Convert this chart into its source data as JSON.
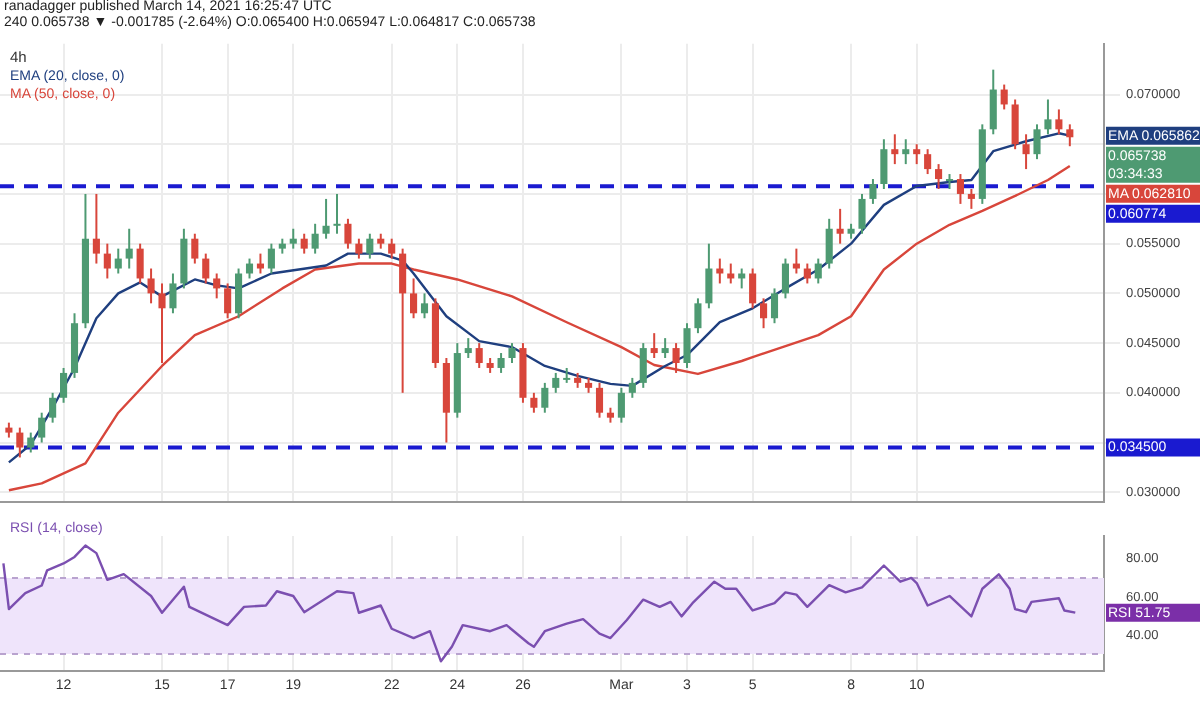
{
  "chart_data": [
    {
      "type": "candlestick",
      "title": "4h",
      "subtitle": "ranadagger published March 14, 2021 16:25:47 UTC",
      "annotations": [
        "240 0.065738 ▼ -0.001785 (-2.64%) O:0.065400 H:0.065947 L:0.064817 C:0.065738",
        "EMA 0.065862",
        "0.065738 03:34:33",
        "MA 0.062810"
      ],
      "tick_labels": "y",
      "grid": true,
      "legend": "top left",
      "xlim": [
        "2021-02-10T01:30",
        "2021-03-15T17:00"
      ],
      "xticks": [
        {
          "value": "2021-02-12",
          "label": null
        },
        {
          "value": "2021-02-15",
          "label": null
        },
        {
          "value": "2021-02-17",
          "label": null
        },
        {
          "value": "2021-02-19",
          "label": null
        },
        {
          "value": "2021-02-22",
          "label": null
        },
        {
          "value": "2021-02-24",
          "label": null
        },
        {
          "value": "2021-02-26",
          "label": null
        },
        {
          "value": "2021-03-01",
          "label": null
        },
        {
          "value": "2021-03-03",
          "label": null
        },
        {
          "value": "2021-03-05",
          "label": null
        },
        {
          "value": "2021-03-08",
          "label": null
        },
        {
          "value": "2021-03-10",
          "label": null
        }
      ],
      "ylim": [
        0.029,
        0.0751
      ],
      "yticks": [
        {
          "value": 0.03,
          "label": "0.030000"
        },
        {
          "value": 0.035,
          "label": null
        },
        {
          "value": 0.04,
          "label": "0.040000"
        },
        {
          "value": 0.045,
          "label": "0.045000"
        },
        {
          "value": 0.05,
          "label": "0.050000"
        },
        {
          "value": 0.055,
          "label": "0.055000"
        },
        {
          "value": 0.06,
          "label": null
        },
        {
          "value": 0.065,
          "label": null
        },
        {
          "value": 0.07,
          "label": "0.070000"
        }
      ],
      "ref_lines": [
        {
          "axis": "y",
          "value": 0.060774,
          "label": "0.060774",
          "color": "#1a1ad0",
          "line_style": "dashed"
        },
        {
          "axis": "y",
          "value": 0.0345,
          "label": "0.034500",
          "color": "#1a1ad0",
          "line_style": "dashed"
        }
      ],
      "x": [
        "2021-02-10T08:00",
        "2021-02-10T16:00",
        "2021-02-11T00:00",
        "2021-02-11T08:00",
        "2021-02-11T16:00",
        "2021-02-12T00:00",
        "2021-02-12T08:00",
        "2021-02-12T16:00",
        "2021-02-13T00:00",
        "2021-02-13T08:00",
        "2021-02-13T16:00",
        "2021-02-14T00:00",
        "2021-02-14T08:00",
        "2021-02-14T16:00",
        "2021-02-15T00:00",
        "2021-02-15T08:00",
        "2021-02-15T16:00",
        "2021-02-16T00:00",
        "2021-02-16T08:00",
        "2021-02-16T16:00",
        "2021-02-17T00:00",
        "2021-02-17T08:00",
        "2021-02-17T16:00",
        "2021-02-18T00:00",
        "2021-02-18T08:00",
        "2021-02-18T16:00",
        "2021-02-19T00:00",
        "2021-02-19T08:00",
        "2021-02-19T16:00",
        "2021-02-20T00:00",
        "2021-02-20T08:00",
        "2021-02-20T16:00",
        "2021-02-21T00:00",
        "2021-02-21T08:00",
        "2021-02-21T16:00",
        "2021-02-22T00:00",
        "2021-02-22T08:00",
        "2021-02-22T16:00",
        "2021-02-23T00:00",
        "2021-02-23T08:00",
        "2021-02-23T16:00",
        "2021-02-24T00:00",
        "2021-02-24T08:00",
        "2021-02-24T16:00",
        "2021-02-25T00:00",
        "2021-02-25T08:00",
        "2021-02-25T16:00",
        "2021-02-26T00:00",
        "2021-02-26T08:00",
        "2021-02-26T16:00",
        "2021-02-27T00:00",
        "2021-02-27T08:00",
        "2021-02-27T16:00",
        "2021-02-28T00:00",
        "2021-02-28T08:00",
        "2021-02-28T16:00",
        "2021-03-01T00:00",
        "2021-03-01T08:00",
        "2021-03-01T16:00",
        "2021-03-02T00:00",
        "2021-03-02T08:00",
        "2021-03-02T16:00",
        "2021-03-03T00:00",
        "2021-03-03T08:00",
        "2021-03-03T16:00",
        "2021-03-04T00:00",
        "2021-03-04T08:00",
        "2021-03-04T16:00",
        "2021-03-05T00:00",
        "2021-03-05T08:00",
        "2021-03-05T16:00",
        "2021-03-06T00:00",
        "2021-03-06T08:00",
        "2021-03-06T16:00",
        "2021-03-07T00:00",
        "2021-03-07T08:00",
        "2021-03-07T16:00",
        "2021-03-08T00:00",
        "2021-03-08T08:00",
        "2021-03-08T16:00",
        "2021-03-09T00:00",
        "2021-03-09T08:00",
        "2021-03-09T16:00",
        "2021-03-10T00:00",
        "2021-03-10T08:00",
        "2021-03-10T16:00",
        "2021-03-11T00:00",
        "2021-03-11T08:00",
        "2021-03-11T16:00",
        "2021-03-12T00:00",
        "2021-03-12T08:00",
        "2021-03-12T16:00",
        "2021-03-13T00:00",
        "2021-03-13T08:00",
        "2021-03-13T16:00",
        "2021-03-14T00:00",
        "2021-03-14T08:00",
        "2021-03-14T16:00"
      ],
      "ohlc": [
        [
          0.0365,
          0.037,
          0.0355,
          0.036
        ],
        [
          0.036,
          0.0365,
          0.0335,
          0.0345
        ],
        [
          0.0345,
          0.036,
          0.034,
          0.0355
        ],
        [
          0.0355,
          0.038,
          0.035,
          0.0375
        ],
        [
          0.0375,
          0.04,
          0.037,
          0.0395
        ],
        [
          0.0395,
          0.0425,
          0.039,
          0.042
        ],
        [
          0.042,
          0.048,
          0.0415,
          0.047
        ],
        [
          0.047,
          0.06,
          0.0465,
          0.0555
        ],
        [
          0.0555,
          0.06,
          0.053,
          0.054
        ],
        [
          0.054,
          0.055,
          0.0515,
          0.0525
        ],
        [
          0.0525,
          0.0545,
          0.052,
          0.0535
        ],
        [
          0.0535,
          0.0565,
          0.0525,
          0.0545
        ],
        [
          0.0545,
          0.055,
          0.051,
          0.0515
        ],
        [
          0.0515,
          0.0525,
          0.049,
          0.05
        ],
        [
          0.05,
          0.051,
          0.043,
          0.0485
        ],
        [
          0.0485,
          0.052,
          0.048,
          0.051
        ],
        [
          0.051,
          0.0565,
          0.0505,
          0.0555
        ],
        [
          0.0555,
          0.056,
          0.053,
          0.0535
        ],
        [
          0.0535,
          0.054,
          0.051,
          0.0515
        ],
        [
          0.0515,
          0.052,
          0.0495,
          0.0505
        ],
        [
          0.0505,
          0.051,
          0.0475,
          0.048
        ],
        [
          0.048,
          0.0525,
          0.0475,
          0.052
        ],
        [
          0.052,
          0.0535,
          0.0515,
          0.053
        ],
        [
          0.053,
          0.054,
          0.052,
          0.0525
        ],
        [
          0.0525,
          0.055,
          0.052,
          0.0545
        ],
        [
          0.0545,
          0.0555,
          0.054,
          0.055
        ],
        [
          0.055,
          0.0565,
          0.0545,
          0.0555
        ],
        [
          0.0555,
          0.056,
          0.054,
          0.0545
        ],
        [
          0.0545,
          0.057,
          0.054,
          0.056
        ],
        [
          0.056,
          0.0595,
          0.0555,
          0.0568
        ],
        [
          0.0568,
          0.06,
          0.056,
          0.057
        ],
        [
          0.057,
          0.0575,
          0.0545,
          0.055
        ],
        [
          0.055,
          0.0555,
          0.0535,
          0.054
        ],
        [
          0.054,
          0.056,
          0.0535,
          0.0555
        ],
        [
          0.0555,
          0.056,
          0.0545,
          0.055
        ],
        [
          0.055,
          0.0555,
          0.0535,
          0.054
        ],
        [
          0.054,
          0.0545,
          0.04,
          0.05
        ],
        [
          0.05,
          0.0515,
          0.0475,
          0.048
        ],
        [
          0.048,
          0.05,
          0.0475,
          0.049
        ],
        [
          0.049,
          0.0495,
          0.0425,
          0.043
        ],
        [
          0.043,
          0.0435,
          0.035,
          0.038
        ],
        [
          0.038,
          0.045,
          0.0375,
          0.044
        ],
        [
          0.044,
          0.0455,
          0.0435,
          0.0445
        ],
        [
          0.0445,
          0.045,
          0.0425,
          0.043
        ],
        [
          0.043,
          0.0435,
          0.042,
          0.0425
        ],
        [
          0.0425,
          0.044,
          0.042,
          0.0435
        ],
        [
          0.0435,
          0.045,
          0.043,
          0.0445
        ],
        [
          0.0445,
          0.045,
          0.039,
          0.0395
        ],
        [
          0.0395,
          0.04,
          0.038,
          0.0385
        ],
        [
          0.0385,
          0.041,
          0.038,
          0.0405
        ],
        [
          0.0405,
          0.042,
          0.04,
          0.0415
        ],
        [
          0.0415,
          0.0425,
          0.041,
          0.0415
        ],
        [
          0.0415,
          0.042,
          0.0405,
          0.041
        ],
        [
          0.041,
          0.0415,
          0.04,
          0.0405
        ],
        [
          0.0405,
          0.041,
          0.0375,
          0.038
        ],
        [
          0.038,
          0.0385,
          0.037,
          0.0375
        ],
        [
          0.0375,
          0.0405,
          0.037,
          0.04
        ],
        [
          0.04,
          0.0415,
          0.0395,
          0.041
        ],
        [
          0.041,
          0.045,
          0.0405,
          0.0445
        ],
        [
          0.0445,
          0.046,
          0.0435,
          0.044
        ],
        [
          0.044,
          0.0455,
          0.0435,
          0.0445
        ],
        [
          0.0445,
          0.045,
          0.042,
          0.043
        ],
        [
          0.043,
          0.047,
          0.0425,
          0.0465
        ],
        [
          0.0465,
          0.0495,
          0.046,
          0.049
        ],
        [
          0.049,
          0.055,
          0.0485,
          0.0525
        ],
        [
          0.0525,
          0.0535,
          0.051,
          0.052
        ],
        [
          0.052,
          0.053,
          0.051,
          0.0515
        ],
        [
          0.0515,
          0.0525,
          0.0505,
          0.052
        ],
        [
          0.052,
          0.0525,
          0.0485,
          0.049
        ],
        [
          0.049,
          0.0495,
          0.0465,
          0.0475
        ],
        [
          0.0475,
          0.0505,
          0.047,
          0.05
        ],
        [
          0.05,
          0.0535,
          0.0495,
          0.053
        ],
        [
          0.053,
          0.0545,
          0.052,
          0.0525
        ],
        [
          0.0525,
          0.053,
          0.051,
          0.0515
        ],
        [
          0.0515,
          0.0535,
          0.051,
          0.053
        ],
        [
          0.053,
          0.0575,
          0.0525,
          0.0565
        ],
        [
          0.0565,
          0.0585,
          0.055,
          0.056
        ],
        [
          0.056,
          0.057,
          0.0555,
          0.0565
        ],
        [
          0.0565,
          0.06,
          0.056,
          0.0595
        ],
        [
          0.0595,
          0.0615,
          0.059,
          0.061
        ],
        [
          0.061,
          0.0655,
          0.0605,
          0.0645
        ],
        [
          0.0645,
          0.066,
          0.063,
          0.064
        ],
        [
          0.064,
          0.0655,
          0.063,
          0.0645
        ],
        [
          0.0645,
          0.065,
          0.063,
          0.064
        ],
        [
          0.064,
          0.0645,
          0.062,
          0.0625
        ],
        [
          0.0625,
          0.063,
          0.0605,
          0.0615
        ],
        [
          0.0615,
          0.062,
          0.0605,
          0.0615
        ],
        [
          0.0615,
          0.062,
          0.059,
          0.06
        ],
        [
          0.06,
          0.0605,
          0.0585,
          0.0595
        ],
        [
          0.0595,
          0.067,
          0.059,
          0.0665
        ],
        [
          0.0665,
          0.0725,
          0.066,
          0.0705
        ],
        [
          0.0705,
          0.071,
          0.0685,
          0.069
        ],
        [
          0.069,
          0.0695,
          0.0645,
          0.065
        ],
        [
          0.065,
          0.066,
          0.0625,
          0.064
        ],
        [
          0.064,
          0.067,
          0.0635,
          0.0665
        ],
        [
          0.0665,
          0.0695,
          0.066,
          0.0675
        ],
        [
          0.0675,
          0.0685,
          0.066,
          0.0665
        ],
        [
          0.0665,
          0.067,
          0.0648,
          0.0657
        ]
      ],
      "series": [
        {
          "name": "EMA (20, close, 0)",
          "type": "line",
          "color": "#1f3f7f",
          "x": [
            "2021-02-10T08:00",
            "2021-02-11T00:00",
            "2021-02-11T16:00",
            "2021-02-12T08:00",
            "2021-02-13T00:00",
            "2021-02-13T16:00",
            "2021-02-14T08:00",
            "2021-02-15T00:00",
            "2021-02-16T00:00",
            "2021-02-16T16:00",
            "2021-02-17T08:00",
            "2021-02-18T08:00",
            "2021-02-20T00:00",
            "2021-02-20T16:00",
            "2021-02-21T16:00",
            "2021-02-22T08:00",
            "2021-02-22T16:00",
            "2021-02-23T16:00",
            "2021-02-24T16:00",
            "2021-02-25T16:00",
            "2021-02-26T16:00",
            "2021-02-27T16:00",
            "2021-02-28T16:00",
            "2021-03-01T08:00",
            "2021-03-02T08:00",
            "2021-03-03T00:00",
            "2021-03-04T00:00",
            "2021-03-05T00:00",
            "2021-03-06T00:00",
            "2021-03-07T00:00",
            "2021-03-08T00:00",
            "2021-03-09T00:00",
            "2021-03-10T00:00",
            "2021-03-11T00:00",
            "2021-03-11T16:00",
            "2021-03-12T08:00",
            "2021-03-13T08:00",
            "2021-03-14T08:00",
            "2021-03-14T16:00"
          ],
          "values": [
            0.033,
            0.0348,
            0.0385,
            0.0425,
            0.0475,
            0.05,
            0.0511,
            0.0497,
            0.0514,
            0.0508,
            0.0505,
            0.052,
            0.0528,
            0.054,
            0.054,
            0.0533,
            0.052,
            0.0477,
            0.0452,
            0.0446,
            0.0427,
            0.0417,
            0.0409,
            0.0407,
            0.0427,
            0.0438,
            0.0471,
            0.0485,
            0.0505,
            0.0524,
            0.055,
            0.0589,
            0.0608,
            0.0612,
            0.0614,
            0.0643,
            0.0653,
            0.0661,
            0.065862
          ]
        },
        {
          "name": "MA (50, close, 0)",
          "type": "line",
          "color": "#d8463b",
          "x": [
            "2021-02-10T08:00",
            "2021-02-11T08:00",
            "2021-02-12T16:00",
            "2021-02-13T16:00",
            "2021-02-15T00:00",
            "2021-02-16T00:00",
            "2021-02-17T08:00",
            "2021-02-18T16:00",
            "2021-02-19T16:00",
            "2021-02-21T00:00",
            "2021-02-22T00:00",
            "2021-02-22T16:00",
            "2021-02-24T00:00",
            "2021-02-25T16:00",
            "2021-02-27T08:00",
            "2021-03-01T00:00",
            "2021-03-02T00:00",
            "2021-03-03T08:00",
            "2021-03-04T16:00",
            "2021-03-05T00:00",
            "2021-03-07T00:00",
            "2021-03-08T00:00",
            "2021-03-09T00:00",
            "2021-03-10T00:00",
            "2021-03-11T00:00",
            "2021-03-12T00:00",
            "2021-03-13T00:00",
            "2021-03-14T00:00",
            "2021-03-14T16:00"
          ],
          "values": [
            0.0302,
            0.0309,
            0.0329,
            0.038,
            0.0427,
            0.0458,
            0.0477,
            0.0505,
            0.0524,
            0.053,
            0.053,
            0.0524,
            0.0514,
            0.0497,
            0.0471,
            0.0446,
            0.0428,
            0.0419,
            0.0432,
            0.0436,
            0.0458,
            0.0477,
            0.0524,
            0.055,
            0.0569,
            0.0583,
            0.0598,
            0.0614,
            0.06281
          ]
        }
      ]
    },
    {
      "type": "line",
      "grid": "x",
      "legend": "top left",
      "xlim": [
        "2021-02-10T01:30",
        "2021-03-15T17:00"
      ],
      "xticks": [
        {
          "value": "2021-02-12",
          "label": "12"
        },
        {
          "value": "2021-02-15",
          "label": "15"
        },
        {
          "value": "2021-02-17",
          "label": "17"
        },
        {
          "value": "2021-02-19",
          "label": "19"
        },
        {
          "value": "2021-02-22",
          "label": "22"
        },
        {
          "value": "2021-02-24",
          "label": "24"
        },
        {
          "value": "2021-02-26",
          "label": "26"
        },
        {
          "value": "2021-03-01",
          "label": "Mar"
        },
        {
          "value": "2021-03-03",
          "label": "3"
        },
        {
          "value": "2021-03-05",
          "label": "5"
        },
        {
          "value": "2021-03-08",
          "label": "8"
        },
        {
          "value": "2021-03-10",
          "label": "10"
        }
      ],
      "ylim": [
        21,
        92
      ],
      "yticks": [
        {
          "value": 40,
          "label": "40.00"
        },
        {
          "value": 60,
          "label": "60.00"
        },
        {
          "value": 80,
          "label": "80.00"
        }
      ],
      "bands": [
        {
          "axis": "y",
          "from": 30,
          "to": 70,
          "color": "#efe4fb"
        }
      ],
      "ref_lines": [
        {
          "axis": "y",
          "value": 70,
          "color": "#b9a3cf",
          "line_style": "dashed"
        },
        {
          "axis": "y",
          "value": 30,
          "color": "#b9a3cf",
          "line_style": "dashed"
        }
      ],
      "annotations": [
        "RSI 51.75"
      ],
      "series": [
        {
          "name": "RSI (14, close)",
          "color": "#7b4fb0",
          "x": [
            "2021-02-10T04:00",
            "2021-02-10T08:00",
            "2021-02-10T20:00",
            "2021-02-11T08:00",
            "2021-02-11T12:00",
            "2021-02-12T00:00",
            "2021-02-12T08:00",
            "2021-02-12T16:00",
            "2021-02-13T00:00",
            "2021-02-13T08:00",
            "2021-02-13T20:00",
            "2021-02-14T16:00",
            "2021-02-15T00:00",
            "2021-02-15T16:00",
            "2021-02-15T20:00",
            "2021-02-17T00:00",
            "2021-02-17T12:00",
            "2021-02-18T04:00",
            "2021-02-18T12:00",
            "2021-02-19T00:00",
            "2021-02-19T08:00",
            "2021-02-20T08:00",
            "2021-02-20T20:00",
            "2021-02-21T00:00",
            "2021-02-21T16:00",
            "2021-02-22T00:00",
            "2021-02-22T16:00",
            "2021-02-23T04:00",
            "2021-02-23T12:00",
            "2021-02-23T20:00",
            "2021-02-24T04:00",
            "2021-02-25T00:00",
            "2021-02-25T12:00",
            "2021-02-26T04:00",
            "2021-02-26T08:00",
            "2021-02-26T16:00",
            "2021-02-27T08:00",
            "2021-02-27T20:00",
            "2021-02-28T08:00",
            "2021-02-28T16:00",
            "2021-03-01T04:00",
            "2021-03-01T16:00",
            "2021-03-02T04:00",
            "2021-03-02T12:00",
            "2021-03-02T20:00",
            "2021-03-03T04:00",
            "2021-03-03T20:00",
            "2021-03-04T04:00",
            "2021-03-04T12:00",
            "2021-03-05T00:00",
            "2021-03-05T16:00",
            "2021-03-06T00:00",
            "2021-03-06T08:00",
            "2021-03-06T16:00",
            "2021-03-07T08:00",
            "2021-03-07T20:00",
            "2021-03-08T08:00",
            "2021-03-09T00:00",
            "2021-03-09T12:00",
            "2021-03-09T20:00",
            "2021-03-10T00:00",
            "2021-03-10T08:00",
            "2021-03-11T00:00",
            "2021-03-11T16:00",
            "2021-03-12T00:00",
            "2021-03-12T12:00",
            "2021-03-12T20:00",
            "2021-03-13T00:00",
            "2021-03-13T08:00",
            "2021-03-13T12:00",
            "2021-03-14T08:00",
            "2021-03-14T12:00",
            "2021-03-14T20:00"
          ],
          "values": [
            77.6,
            53.6,
            62,
            66,
            74,
            77.6,
            81,
            87,
            83,
            69,
            72,
            60.5,
            51.7,
            65.4,
            54.8,
            45.2,
            54.8,
            55.5,
            63,
            60.5,
            52,
            63,
            62,
            51.7,
            55.5,
            43.3,
            38.4,
            42,
            26.2,
            33.8,
            45.2,
            42,
            45.2,
            35.7,
            33.8,
            42,
            46,
            48.3,
            40.7,
            38.4,
            47.9,
            58.6,
            54.8,
            57.4,
            49.8,
            56.7,
            68,
            64.3,
            64.3,
            52.9,
            56.7,
            62.4,
            61.2,
            54.8,
            66.2,
            62.4,
            65,
            76.5,
            68,
            70,
            67.3,
            55.5,
            60.5,
            49.8,
            64.3,
            71.9,
            64.3,
            53.6,
            52,
            57.4,
            59.3,
            52.9,
            51.75
          ]
        }
      ]
    }
  ]
}
